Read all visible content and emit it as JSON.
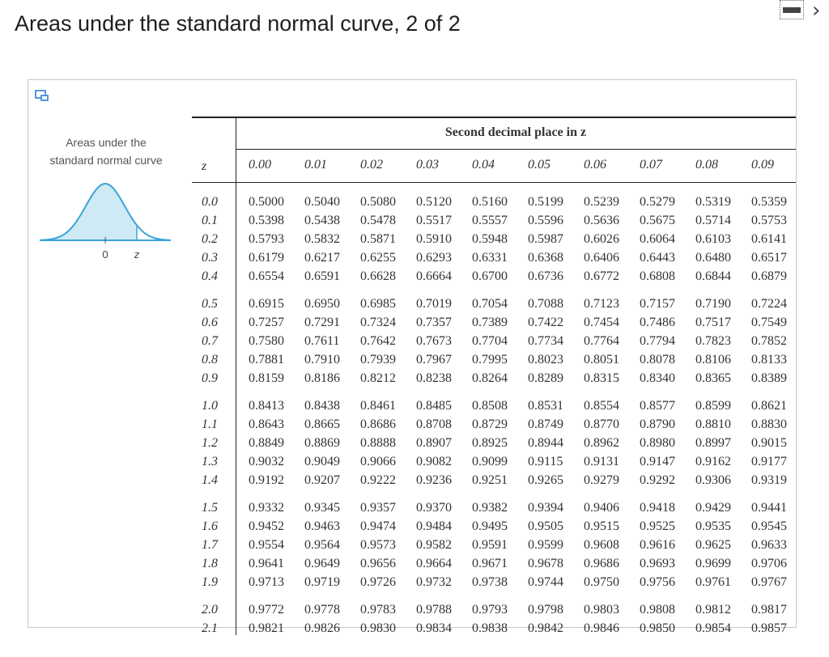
{
  "title": "Areas under the standard normal curve, 2 of 2",
  "icons": {
    "minimize": "minimize-icon",
    "next": "chevron-right-icon",
    "expand": "expand-icon"
  },
  "controls": {
    "next_glyph": "›"
  },
  "curve": {
    "label_line1": "Areas under the",
    "label_line2": "standard normal curve",
    "axis_zero": "0",
    "axis_z": "z",
    "fill_color": "#cfe9f5",
    "line_color": "#3aa4d8"
  },
  "table": {
    "caption": "Second decimal place in z",
    "z_header": "z",
    "columns": [
      "0.00",
      "0.01",
      "0.02",
      "0.03",
      "0.04",
      "0.05",
      "0.06",
      "0.07",
      "0.08",
      "0.09"
    ],
    "rows": [
      {
        "z": "0.0",
        "values": [
          "0.5000",
          "0.5040",
          "0.5080",
          "0.5120",
          "0.5160",
          "0.5199",
          "0.5239",
          "0.5279",
          "0.5319",
          "0.5359"
        ]
      },
      {
        "z": "0.1",
        "values": [
          "0.5398",
          "0.5438",
          "0.5478",
          "0.5517",
          "0.5557",
          "0.5596",
          "0.5636",
          "0.5675",
          "0.5714",
          "0.5753"
        ]
      },
      {
        "z": "0.2",
        "values": [
          "0.5793",
          "0.5832",
          "0.5871",
          "0.5910",
          "0.5948",
          "0.5987",
          "0.6026",
          "0.6064",
          "0.6103",
          "0.6141"
        ]
      },
      {
        "z": "0.3",
        "values": [
          "0.6179",
          "0.6217",
          "0.6255",
          "0.6293",
          "0.6331",
          "0.6368",
          "0.6406",
          "0.6443",
          "0.6480",
          "0.6517"
        ]
      },
      {
        "z": "0.4",
        "values": [
          "0.6554",
          "0.6591",
          "0.6628",
          "0.6664",
          "0.6700",
          "0.6736",
          "0.6772",
          "0.6808",
          "0.6844",
          "0.6879"
        ]
      },
      {
        "z": "0.5",
        "values": [
          "0.6915",
          "0.6950",
          "0.6985",
          "0.7019",
          "0.7054",
          "0.7088",
          "0.7123",
          "0.7157",
          "0.7190",
          "0.7224"
        ]
      },
      {
        "z": "0.6",
        "values": [
          "0.7257",
          "0.7291",
          "0.7324",
          "0.7357",
          "0.7389",
          "0.7422",
          "0.7454",
          "0.7486",
          "0.7517",
          "0.7549"
        ]
      },
      {
        "z": "0.7",
        "values": [
          "0.7580",
          "0.7611",
          "0.7642",
          "0.7673",
          "0.7704",
          "0.7734",
          "0.7764",
          "0.7794",
          "0.7823",
          "0.7852"
        ]
      },
      {
        "z": "0.8",
        "values": [
          "0.7881",
          "0.7910",
          "0.7939",
          "0.7967",
          "0.7995",
          "0.8023",
          "0.8051",
          "0.8078",
          "0.8106",
          "0.8133"
        ]
      },
      {
        "z": "0.9",
        "values": [
          "0.8159",
          "0.8186",
          "0.8212",
          "0.8238",
          "0.8264",
          "0.8289",
          "0.8315",
          "0.8340",
          "0.8365",
          "0.8389"
        ]
      },
      {
        "z": "1.0",
        "values": [
          "0.8413",
          "0.8438",
          "0.8461",
          "0.8485",
          "0.8508",
          "0.8531",
          "0.8554",
          "0.8577",
          "0.8599",
          "0.8621"
        ]
      },
      {
        "z": "1.1",
        "values": [
          "0.8643",
          "0.8665",
          "0.8686",
          "0.8708",
          "0.8729",
          "0.8749",
          "0.8770",
          "0.8790",
          "0.8810",
          "0.8830"
        ]
      },
      {
        "z": "1.2",
        "values": [
          "0.8849",
          "0.8869",
          "0.8888",
          "0.8907",
          "0.8925",
          "0.8944",
          "0.8962",
          "0.8980",
          "0.8997",
          "0.9015"
        ]
      },
      {
        "z": "1.3",
        "values": [
          "0.9032",
          "0.9049",
          "0.9066",
          "0.9082",
          "0.9099",
          "0.9115",
          "0.9131",
          "0.9147",
          "0.9162",
          "0.9177"
        ]
      },
      {
        "z": "1.4",
        "values": [
          "0.9192",
          "0.9207",
          "0.9222",
          "0.9236",
          "0.9251",
          "0.9265",
          "0.9279",
          "0.9292",
          "0.9306",
          "0.9319"
        ]
      },
      {
        "z": "1.5",
        "values": [
          "0.9332",
          "0.9345",
          "0.9357",
          "0.9370",
          "0.9382",
          "0.9394",
          "0.9406",
          "0.9418",
          "0.9429",
          "0.9441"
        ]
      },
      {
        "z": "1.6",
        "values": [
          "0.9452",
          "0.9463",
          "0.9474",
          "0.9484",
          "0.9495",
          "0.9505",
          "0.9515",
          "0.9525",
          "0.9535",
          "0.9545"
        ]
      },
      {
        "z": "1.7",
        "values": [
          "0.9554",
          "0.9564",
          "0.9573",
          "0.9582",
          "0.9591",
          "0.9599",
          "0.9608",
          "0.9616",
          "0.9625",
          "0.9633"
        ]
      },
      {
        "z": "1.8",
        "values": [
          "0.9641",
          "0.9649",
          "0.9656",
          "0.9664",
          "0.9671",
          "0.9678",
          "0.9686",
          "0.9693",
          "0.9699",
          "0.9706"
        ]
      },
      {
        "z": "1.9",
        "values": [
          "0.9713",
          "0.9719",
          "0.9726",
          "0.9732",
          "0.9738",
          "0.9744",
          "0.9750",
          "0.9756",
          "0.9761",
          "0.9767"
        ]
      },
      {
        "z": "2.0",
        "values": [
          "0.9772",
          "0.9778",
          "0.9783",
          "0.9788",
          "0.9793",
          "0.9798",
          "0.9803",
          "0.9808",
          "0.9812",
          "0.9817"
        ]
      },
      {
        "z": "2.1",
        "values": [
          "0.9821",
          "0.9826",
          "0.9830",
          "0.9834",
          "0.9838",
          "0.9842",
          "0.9846",
          "0.9850",
          "0.9854",
          "0.9857"
        ]
      }
    ]
  }
}
